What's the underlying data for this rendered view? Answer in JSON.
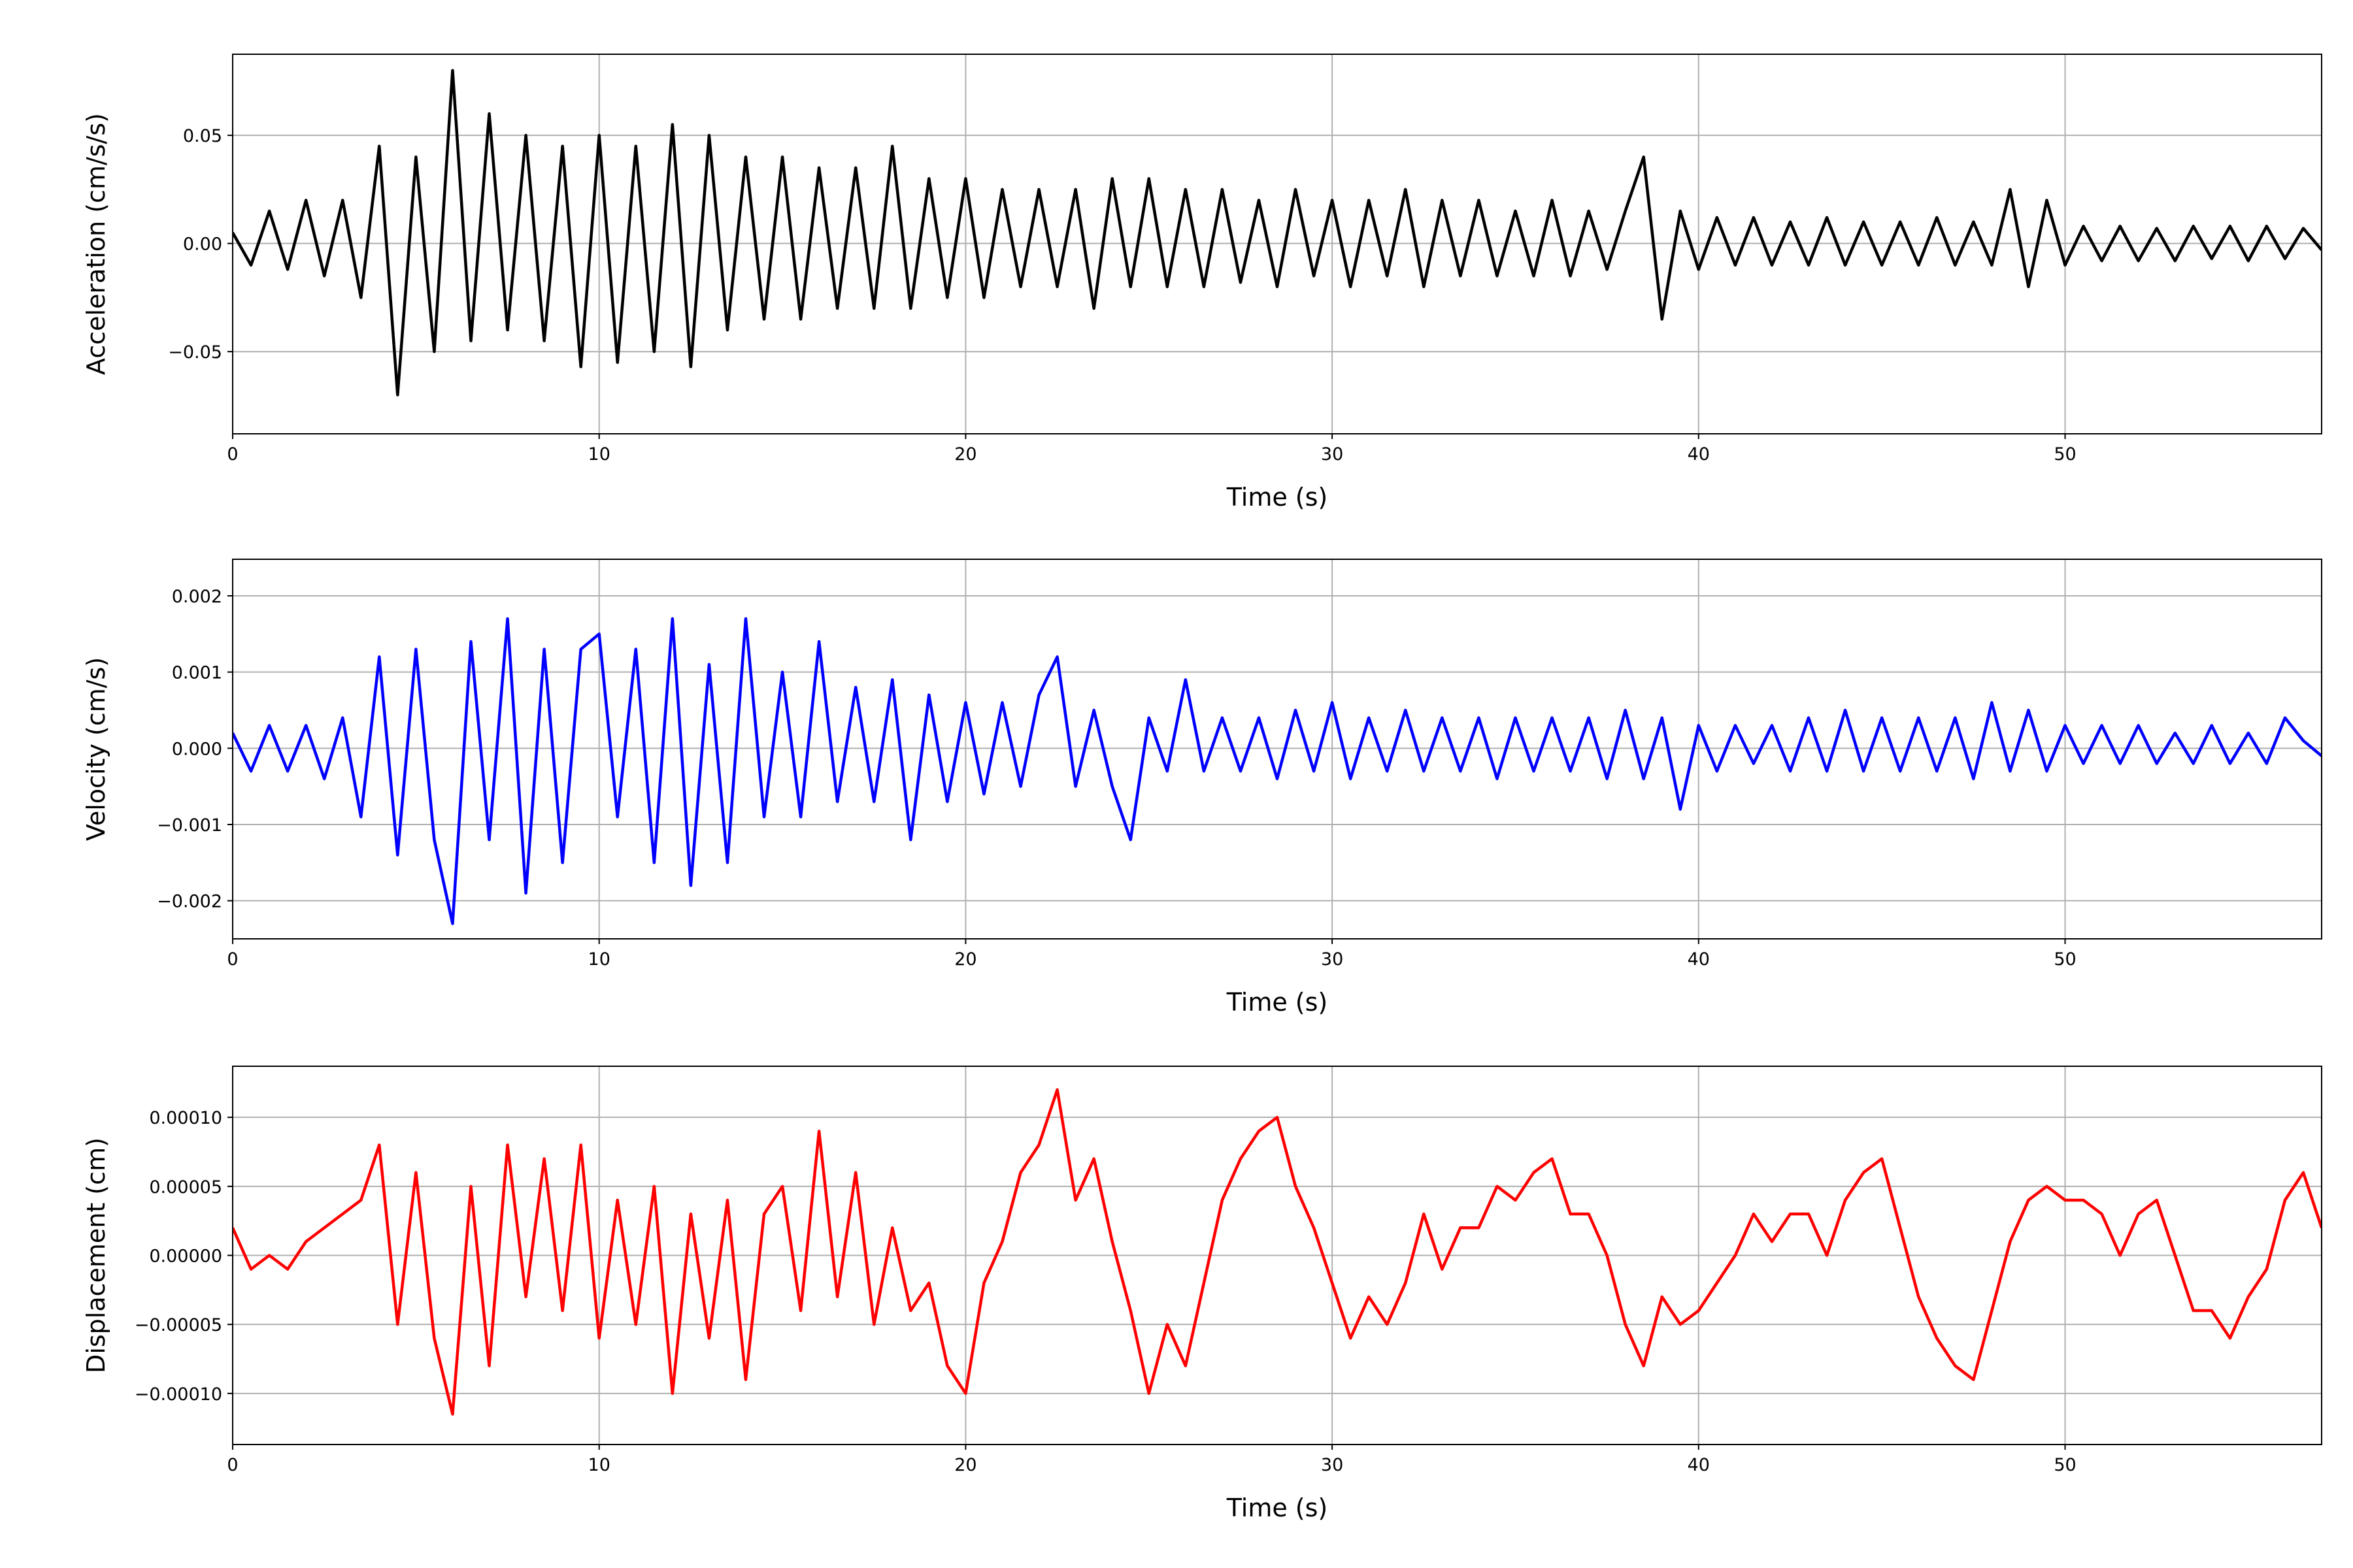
{
  "chart_data": [
    {
      "type": "line",
      "xlabel": "Time (s)",
      "ylabel": "Acceleration (cm/s/s)",
      "color": "#000000",
      "grid": true,
      "xlim": [
        0,
        57
      ],
      "xticks": [
        0,
        10,
        20,
        30,
        40,
        50
      ],
      "ylim": [
        -0.088,
        0.0875
      ],
      "yticks": [
        {
          "value": -0.05,
          "label": "−0.05"
        },
        {
          "value": 0,
          "label": "0.00"
        },
        {
          "value": 0.05,
          "label": "0.05"
        }
      ],
      "x": [
        0,
        0.5,
        1,
        1.5,
        2,
        2.5,
        3,
        3.5,
        4,
        4.5,
        5,
        5.5,
        6,
        6.5,
        7,
        7.5,
        8,
        8.5,
        9,
        9.5,
        10,
        10.5,
        11,
        11.5,
        12,
        12.5,
        13,
        13.5,
        14,
        14.5,
        15,
        15.5,
        16,
        16.5,
        17,
        17.5,
        18,
        18.5,
        19,
        19.5,
        20,
        20.5,
        21,
        21.5,
        22,
        22.5,
        23,
        23.5,
        24,
        24.5,
        25,
        25.5,
        26,
        26.5,
        27,
        27.5,
        28,
        28.5,
        29,
        29.5,
        30,
        30.5,
        31,
        31.5,
        32,
        32.5,
        33,
        33.5,
        34,
        34.5,
        35,
        35.5,
        36,
        36.5,
        37,
        37.5,
        38,
        38.5,
        39,
        39.5,
        40,
        40.5,
        41,
        41.5,
        42,
        42.5,
        43,
        43.5,
        44,
        44.5,
        45,
        45.5,
        46,
        46.5,
        47,
        47.5,
        48,
        48.5,
        49,
        49.5,
        50,
        50.5,
        51,
        51.5,
        52,
        52.5,
        53,
        53.5,
        54,
        54.5,
        55,
        55.5,
        56,
        56.5,
        57
      ],
      "values": [
        0.005,
        -0.01,
        0.015,
        -0.012,
        0.02,
        -0.015,
        0.02,
        -0.025,
        0.045,
        -0.07,
        0.04,
        -0.05,
        0.08,
        -0.045,
        0.06,
        -0.04,
        0.05,
        -0.045,
        0.045,
        -0.057,
        0.05,
        -0.055,
        0.045,
        -0.05,
        0.055,
        -0.057,
        0.05,
        -0.04,
        0.04,
        -0.035,
        0.04,
        -0.035,
        0.035,
        -0.03,
        0.035,
        -0.03,
        0.045,
        -0.03,
        0.03,
        -0.025,
        0.03,
        -0.025,
        0.025,
        -0.02,
        0.025,
        -0.02,
        0.025,
        -0.03,
        0.03,
        -0.02,
        0.03,
        -0.02,
        0.025,
        -0.02,
        0.025,
        -0.018,
        0.02,
        -0.02,
        0.025,
        -0.015,
        0.02,
        -0.02,
        0.02,
        -0.015,
        0.025,
        -0.02,
        0.02,
        -0.015,
        0.02,
        -0.015,
        0.015,
        -0.015,
        0.02,
        -0.015,
        0.015,
        -0.012,
        0.015,
        0.04,
        -0.035,
        0.015,
        -0.012,
        0.012,
        -0.01,
        0.012,
        -0.01,
        0.01,
        -0.01,
        0.012,
        -0.01,
        0.01,
        -0.01,
        0.01,
        -0.01,
        0.012,
        -0.01,
        0.01,
        -0.01,
        0.025,
        -0.02,
        0.02,
        -0.01,
        0.008,
        -0.008,
        0.008,
        -0.008,
        0.007,
        -0.008,
        0.008,
        -0.007,
        0.008,
        -0.008,
        0.008,
        -0.007,
        0.007,
        -0.003
      ]
    },
    {
      "type": "line",
      "xlabel": "Time (s)",
      "ylabel": "Velocity (cm/s)",
      "color": "#0000ff",
      "grid": true,
      "xlim": [
        0,
        57
      ],
      "xticks": [
        0,
        10,
        20,
        30,
        40,
        50
      ],
      "ylim": [
        -0.0025,
        0.00248
      ],
      "yticks": [
        {
          "value": -0.002,
          "label": "−0.002"
        },
        {
          "value": -0.001,
          "label": "−0.001"
        },
        {
          "value": 0,
          "label": "0.000"
        },
        {
          "value": 0.001,
          "label": "0.001"
        },
        {
          "value": 0.002,
          "label": "0.002"
        }
      ],
      "x": [
        0,
        0.5,
        1,
        1.5,
        2,
        2.5,
        3,
        3.5,
        4,
        4.5,
        5,
        5.5,
        6,
        6.5,
        7,
        7.5,
        8,
        8.5,
        9,
        9.5,
        10,
        10.5,
        11,
        11.5,
        12,
        12.5,
        13,
        13.5,
        14,
        14.5,
        15,
        15.5,
        16,
        16.5,
        17,
        17.5,
        18,
        18.5,
        19,
        19.5,
        20,
        20.5,
        21,
        21.5,
        22,
        22.5,
        23,
        23.5,
        24,
        24.5,
        25,
        25.5,
        26,
        26.5,
        27,
        27.5,
        28,
        28.5,
        29,
        29.5,
        30,
        30.5,
        31,
        31.5,
        32,
        32.5,
        33,
        33.5,
        34,
        34.5,
        35,
        35.5,
        36,
        36.5,
        37,
        37.5,
        38,
        38.5,
        39,
        39.5,
        40,
        40.5,
        41,
        41.5,
        42,
        42.5,
        43,
        43.5,
        44,
        44.5,
        45,
        45.5,
        46,
        46.5,
        47,
        47.5,
        48,
        48.5,
        49,
        49.5,
        50,
        50.5,
        51,
        51.5,
        52,
        52.5,
        53,
        53.5,
        54,
        54.5,
        55,
        55.5,
        56,
        56.5,
        57
      ],
      "values": [
        0.0002,
        -0.0003,
        0.0003,
        -0.0003,
        0.0003,
        -0.0004,
        0.0004,
        -0.0009,
        0.0012,
        -0.0014,
        0.0013,
        -0.0012,
        -0.0023,
        0.0014,
        -0.0012,
        0.0017,
        -0.0019,
        0.0013,
        -0.0015,
        0.0013,
        0.0015,
        -0.0009,
        0.0013,
        -0.0015,
        0.0017,
        -0.0018,
        0.0011,
        -0.0015,
        0.0017,
        -0.0009,
        0.001,
        -0.0009,
        0.0014,
        -0.0007,
        0.0008,
        -0.0007,
        0.0009,
        -0.0012,
        0.0007,
        -0.0007,
        0.0006,
        -0.0006,
        0.0006,
        -0.0005,
        0.0007,
        0.0012,
        -0.0005,
        0.0005,
        -0.0005,
        -0.0012,
        0.0004,
        -0.0003,
        0.0009,
        -0.0003,
        0.0004,
        -0.0003,
        0.0004,
        -0.0004,
        0.0005,
        -0.0003,
        0.0006,
        -0.0004,
        0.0004,
        -0.0003,
        0.0005,
        -0.0003,
        0.0004,
        -0.0003,
        0.0004,
        -0.0004,
        0.0004,
        -0.0003,
        0.0004,
        -0.0003,
        0.0004,
        -0.0004,
        0.0005,
        -0.0004,
        0.0004,
        -0.0008,
        0.0003,
        -0.0003,
        0.0003,
        -0.0002,
        0.0003,
        -0.0003,
        0.0004,
        -0.0003,
        0.0005,
        -0.0003,
        0.0004,
        -0.0003,
        0.0004,
        -0.0003,
        0.0004,
        -0.0004,
        0.0006,
        -0.0003,
        0.0005,
        -0.0003,
        0.0003,
        -0.0002,
        0.0003,
        -0.0002,
        0.0003,
        -0.0002,
        0.0002,
        -0.0002,
        0.0003,
        -0.0002,
        0.0002,
        -0.0002,
        0.0004,
        0.0001,
        -0.0001
      ]
    },
    {
      "type": "line",
      "xlabel": "Time (s)",
      "ylabel": "Displacement (cm)",
      "color": "#ff0000",
      "grid": true,
      "xlim": [
        0,
        57
      ],
      "xticks": [
        0,
        10,
        20,
        30,
        40,
        50
      ],
      "ylim": [
        -0.000137,
        0.000137
      ],
      "yticks": [
        {
          "value": -0.0001,
          "label": "−0.00010"
        },
        {
          "value": -5e-05,
          "label": "−0.00005"
        },
        {
          "value": 0,
          "label": "0.00000"
        },
        {
          "value": 5e-05,
          "label": "0.00005"
        },
        {
          "value": 0.0001,
          "label": "0.00010"
        }
      ],
      "x": [
        0,
        0.5,
        1,
        1.5,
        2,
        2.5,
        3,
        3.5,
        4,
        4.5,
        5,
        5.5,
        6,
        6.5,
        7,
        7.5,
        8,
        8.5,
        9,
        9.5,
        10,
        10.5,
        11,
        11.5,
        12,
        12.5,
        13,
        13.5,
        14,
        14.5,
        15,
        15.5,
        16,
        16.5,
        17,
        17.5,
        18,
        18.5,
        19,
        19.5,
        20,
        20.5,
        21,
        21.5,
        22,
        22.5,
        23,
        23.5,
        24,
        24.5,
        25,
        25.5,
        26,
        26.5,
        27,
        27.5,
        28,
        28.5,
        29,
        29.5,
        30,
        30.5,
        31,
        31.5,
        32,
        32.5,
        33,
        33.5,
        34,
        34.5,
        35,
        35.5,
        36,
        36.5,
        37,
        37.5,
        38,
        38.5,
        39,
        39.5,
        40,
        40.5,
        41,
        41.5,
        42,
        42.5,
        43,
        43.5,
        44,
        44.5,
        45,
        45.5,
        46,
        46.5,
        47,
        47.5,
        48,
        48.5,
        49,
        49.5,
        50,
        50.5,
        51,
        51.5,
        52,
        52.5,
        53,
        53.5,
        54,
        54.5,
        55,
        55.5,
        56,
        56.5,
        57
      ],
      "values": [
        2e-05,
        -1e-05,
        0,
        -1e-05,
        1e-05,
        2e-05,
        3e-05,
        4e-05,
        8e-05,
        -5e-05,
        6e-05,
        -6e-05,
        -0.000115,
        5e-05,
        -8e-05,
        8e-05,
        -3e-05,
        7e-05,
        -4e-05,
        8e-05,
        -6e-05,
        4e-05,
        -5e-05,
        5e-05,
        -0.0001,
        3e-05,
        -6e-05,
        4e-05,
        -9e-05,
        3e-05,
        5e-05,
        -4e-05,
        9e-05,
        -3e-05,
        6e-05,
        -5e-05,
        2e-05,
        -4e-05,
        -2e-05,
        -8e-05,
        -0.0001,
        -2e-05,
        1e-05,
        6e-05,
        8e-05,
        0.00012,
        4e-05,
        7e-05,
        1e-05,
        -4e-05,
        -0.0001,
        -5e-05,
        -8e-05,
        -2e-05,
        4e-05,
        7e-05,
        9e-05,
        0.0001,
        5e-05,
        2e-05,
        -2e-05,
        -6e-05,
        -3e-05,
        -5e-05,
        -2e-05,
        3e-05,
        -1e-05,
        2e-05,
        2e-05,
        5e-05,
        4e-05,
        6e-05,
        7e-05,
        3e-05,
        3e-05,
        0,
        -5e-05,
        -8e-05,
        -3e-05,
        -5e-05,
        -4e-05,
        -2e-05,
        0,
        3e-05,
        1e-05,
        3e-05,
        3e-05,
        0,
        4e-05,
        6e-05,
        7e-05,
        2e-05,
        -3e-05,
        -6e-05,
        -8e-05,
        -9e-05,
        -4e-05,
        1e-05,
        4e-05,
        5e-05,
        4e-05,
        4e-05,
        3e-05,
        0,
        3e-05,
        4e-05,
        0,
        -4e-05,
        -4e-05,
        -6e-05,
        -3e-05,
        -1e-05,
        4e-05,
        6e-05,
        2e-05
      ]
    }
  ]
}
